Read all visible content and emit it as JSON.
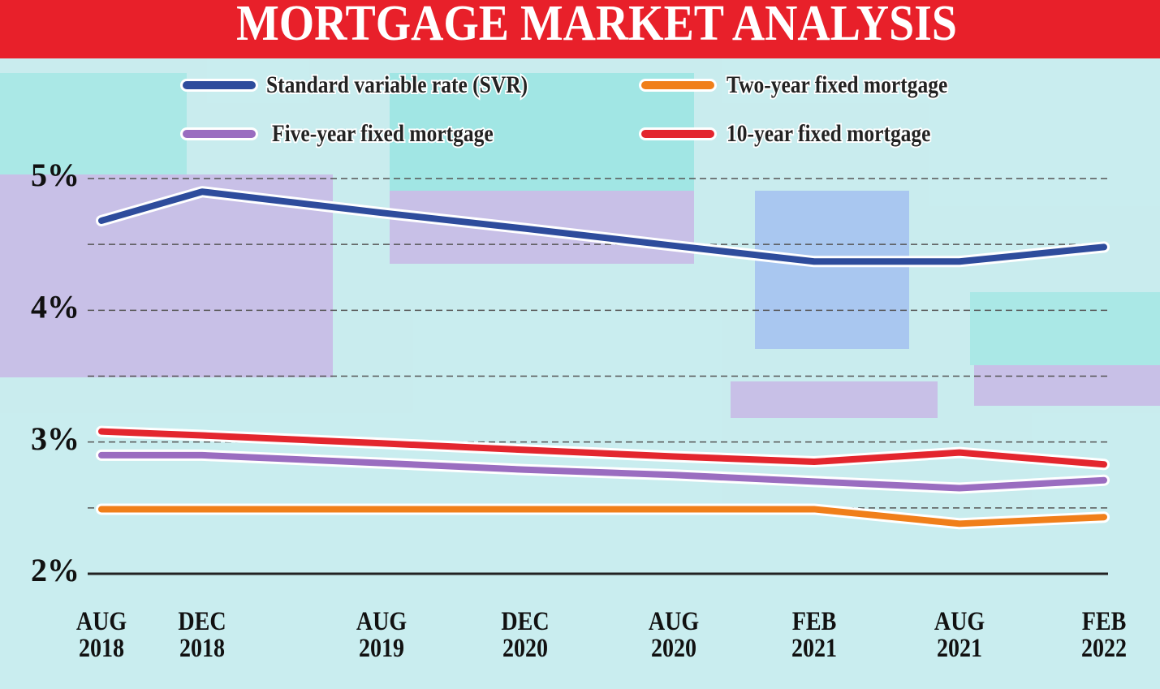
{
  "chart_data": {
    "type": "line",
    "title": "MORTGAGE MARKET ANALYSIS",
    "categories": [
      "AUG 2018",
      "DEC 2018",
      "AUG 2019",
      "DEC 2020",
      "AUG 2020",
      "FEB 2021",
      "AUG 2021",
      "FEB 2022"
    ],
    "series": [
      {
        "name": "Standard variable rate (SVR)",
        "color": "#2e4c9c",
        "values": [
          4.68,
          4.9,
          4.74,
          4.62,
          4.49,
          4.37,
          4.37,
          4.48
        ]
      },
      {
        "name": "Two-year fixed mortgage",
        "color": "#f07f1a",
        "values": [
          2.49,
          2.49,
          2.49,
          2.49,
          2.49,
          2.49,
          2.38,
          2.43
        ]
      },
      {
        "name": "Five-year fixed mortgage",
        "color": "#9a6dc0",
        "values": [
          2.9,
          2.9,
          2.84,
          2.79,
          2.75,
          2.7,
          2.65,
          2.71
        ]
      },
      {
        "name": "10-year fixed mortgage",
        "color": "#e3262e",
        "values": [
          3.08,
          3.05,
          2.99,
          2.94,
          2.89,
          2.85,
          2.92,
          2.83
        ]
      }
    ],
    "ylim": [
      2,
      5
    ],
    "yticks": [
      {
        "value": 2,
        "label": "2%"
      },
      {
        "value": 3,
        "label": "3%"
      },
      {
        "value": 4,
        "label": "4%"
      },
      {
        "value": 5,
        "label": "5%"
      }
    ],
    "minor_yticks": [
      2.5,
      3.5,
      4.5
    ],
    "grid": true
  }
}
